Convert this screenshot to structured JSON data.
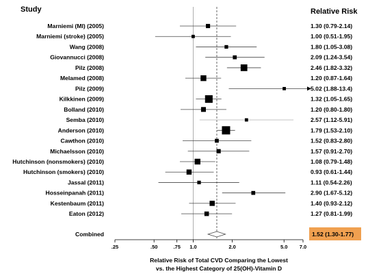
{
  "chart_data": {
    "type": "forest",
    "header_left": "Study",
    "header_right": "Relative Risk",
    "xlabel_line1": "Relative Risk of Total CVD Comparing the Lowest",
    "xlabel_line2": "vs. the Highest Category of 25(OH)-Vitamin D",
    "x_scale": "log",
    "xlim": [
      0.25,
      7.0
    ],
    "x_ticks": [
      0.25,
      0.5,
      0.75,
      1.0,
      2.0,
      5.0,
      7.0
    ],
    "x_tick_labels": [
      ".25",
      ".50",
      ".75",
      "1.0",
      "2.0",
      "5.0",
      "7.0"
    ],
    "reference_line": 1.0,
    "pooled_line": 1.52,
    "studies": [
      {
        "label": "Marniemi (MI) (2005)",
        "rr": 1.3,
        "lo": 0.79,
        "hi": 2.14,
        "text": "1.30 (0.79-2.14)",
        "weight": 0.35
      },
      {
        "label": "Marniemi (stroke) (2005)",
        "rr": 1.0,
        "lo": 0.51,
        "hi": 1.95,
        "text": "1.00 (0.51-1.95)",
        "weight": 0.2
      },
      {
        "label": "Wang (2008)",
        "rr": 1.8,
        "lo": 1.05,
        "hi": 3.08,
        "text": "1.80 (1.05-3.08)",
        "weight": 0.25
      },
      {
        "label": "Giovannucci (2008)",
        "rr": 2.09,
        "lo": 1.24,
        "hi": 3.54,
        "text": "2.09 (1.24-3.54)",
        "weight": 0.3
      },
      {
        "label": "Pilz (2008)",
        "rr": 2.46,
        "lo": 1.82,
        "hi": 3.32,
        "text": "2.46 (1.82-3.32)",
        "weight": 0.75
      },
      {
        "label": "Melamed (2008)",
        "rr": 1.2,
        "lo": 0.87,
        "hi": 1.64,
        "text": "1.20 (0.87-1.64)",
        "weight": 0.6
      },
      {
        "label": "Pilz (2009)",
        "rr": 5.02,
        "lo": 1.88,
        "hi": 13.4,
        "text": "5.02 (1.88-13.4)",
        "weight": 0.2,
        "arrow": true
      },
      {
        "label": "Kilkkinen (2009)",
        "rr": 1.32,
        "lo": 1.05,
        "hi": 1.65,
        "text": "1.32 (1.05-1.65)",
        "weight": 0.9
      },
      {
        "label": "Bolland (2010)",
        "rr": 1.2,
        "lo": 0.8,
        "hi": 1.8,
        "text": "1.20 (0.80-1.80)",
        "weight": 0.45
      },
      {
        "label": "Semba (2010)",
        "rr": 2.57,
        "lo": 1.12,
        "hi": 5.91,
        "text": "2.57 (1.12-5.91)",
        "weight": 0.2,
        "faint": true
      },
      {
        "label": "Anderson (2010)",
        "rr": 1.79,
        "lo": 1.53,
        "hi": 2.1,
        "text": "1.79 (1.53-2.10)",
        "weight": 1.0
      },
      {
        "label": "Cawthon (2010)",
        "rr": 1.52,
        "lo": 0.83,
        "hi": 2.8,
        "text": "1.52 (0.83-2.80)",
        "weight": 0.3
      },
      {
        "label": "Michaelsson (2010)",
        "rr": 1.57,
        "lo": 0.91,
        "hi": 2.7,
        "text": "1.57 (0.91-2.70)",
        "weight": 0.35
      },
      {
        "label": "Hutchinson (nonsmokers) (2010)",
        "rr": 1.08,
        "lo": 0.79,
        "hi": 1.48,
        "text": "1.08 (0.79-1.48)",
        "weight": 0.6
      },
      {
        "label": "Hutchinson (smokers) (2010)",
        "rr": 0.93,
        "lo": 0.61,
        "hi": 1.44,
        "text": "0.93 (0.61-1.44)",
        "weight": 0.5
      },
      {
        "label": "Jassal (2011)",
        "rr": 1.11,
        "lo": 0.54,
        "hi": 2.26,
        "text": "1.11 (0.54-2.26)",
        "weight": 0.25
      },
      {
        "label": "Hosseinpanah (2011)",
        "rr": 2.9,
        "lo": 1.67,
        "hi": 5.12,
        "text": "2.90 (1.67-5.12)",
        "weight": 0.3
      },
      {
        "label": "Kestenbaum (2011)",
        "rr": 1.4,
        "lo": 0.93,
        "hi": 2.12,
        "text": "1.40 (0.93-2.12)",
        "weight": 0.5
      },
      {
        "label": "Eaton (2012)",
        "rr": 1.27,
        "lo": 0.81,
        "hi": 1.99,
        "text": "1.27 (0.81-1.99)",
        "weight": 0.4
      }
    ],
    "combined": {
      "label": "Combined",
      "rr": 1.52,
      "lo": 1.3,
      "hi": 1.77,
      "text": "1.52 (1.30-1.77)",
      "highlight_color": "#f0a050"
    }
  }
}
